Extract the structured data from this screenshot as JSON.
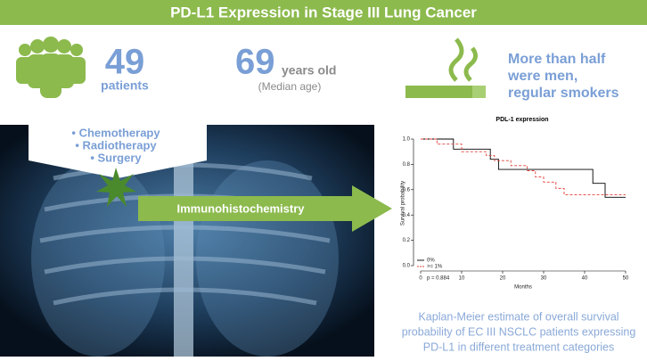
{
  "header": {
    "title": "PD-L1 Expression in Stage III Lung Cancer"
  },
  "stats": {
    "patients": {
      "number": 49,
      "label": "patients"
    },
    "age": {
      "number": 69,
      "unit": "years old",
      "note": "(Median age)"
    },
    "smokers": {
      "lines": [
        "More than half",
        "were men,",
        "regular smokers"
      ]
    }
  },
  "treatments": [
    "• Chemotherapy",
    "• Radiotherapy",
    "• Surgery"
  ],
  "arrow_label": "Immunohistochemistry",
  "chart_data": {
    "type": "step",
    "title": "PDL-1 expression",
    "x_label": "Months",
    "y_label": "Survival probability",
    "xlim": [
      0,
      50
    ],
    "xticks": [
      0,
      10,
      20,
      30,
      40,
      50
    ],
    "ylim": [
      0,
      1
    ],
    "yticks": [
      {
        "value": 0,
        "label": "0.0"
      },
      {
        "value": 0.2,
        "label": "0.2"
      },
      {
        "value": 0.4,
        "label": "0.4"
      },
      {
        "value": 0.6,
        "label": "0.6"
      },
      {
        "value": 0.8,
        "label": "0.8"
      },
      {
        "value": 1,
        "label": "1.0"
      }
    ],
    "series": [
      {
        "name": "0%",
        "color": "#000000",
        "dash": false,
        "x": [
          0,
          8,
          8,
          17,
          17,
          19,
          19,
          42,
          42,
          45,
          45,
          50
        ],
        "values": [
          1,
          1,
          0.92,
          0.92,
          0.84,
          0.84,
          0.76,
          0.76,
          0.65,
          0.65,
          0.54,
          0.54
        ]
      },
      {
        "name": ">= 1%",
        "color": "#e0403a",
        "dash": true,
        "x": [
          0,
          4,
          4,
          10,
          10,
          16,
          16,
          18,
          18,
          22,
          22,
          26,
          26,
          28,
          28,
          30,
          30,
          33,
          33,
          35,
          35,
          50
        ],
        "values": [
          1,
          1,
          0.96,
          0.96,
          0.9,
          0.9,
          0.87,
          0.87,
          0.83,
          0.83,
          0.79,
          0.79,
          0.75,
          0.75,
          0.7,
          0.7,
          0.66,
          0.66,
          0.61,
          0.61,
          0.56,
          0.56
        ]
      }
    ],
    "annotation": "p = 0.884"
  },
  "caption": [
    "Kaplan-Meier estimate of overall survival",
    "probability of EC III NSCLC patients expressing",
    "PD-L1 in different treatment categories"
  ]
}
